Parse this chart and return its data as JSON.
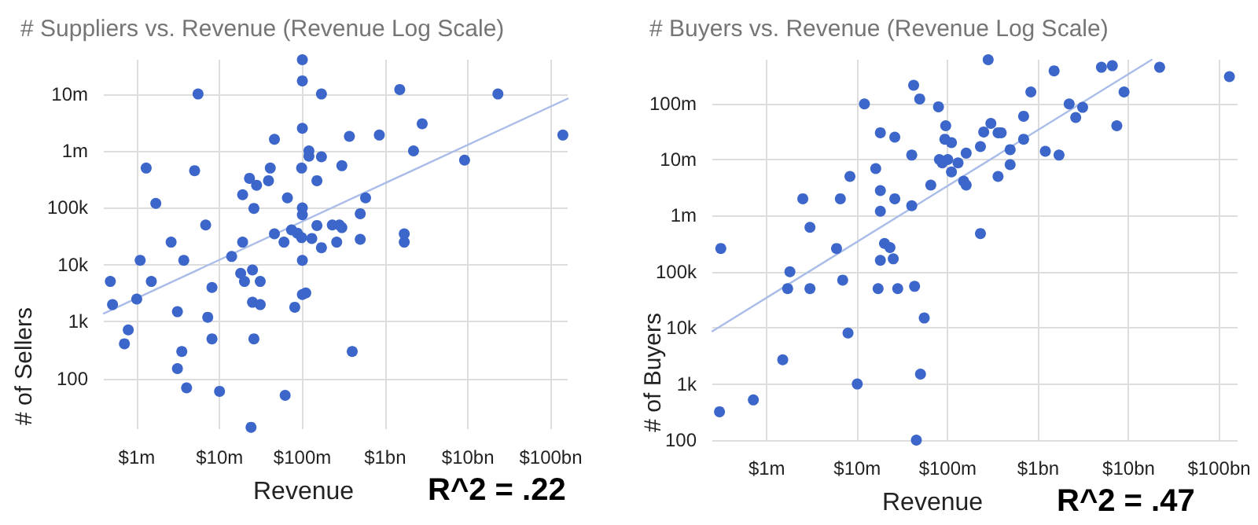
{
  "chart_data": [
    {
      "type": "scatter",
      "title": "# Suppliers vs. Revenue (Revenue Log Scale)",
      "xlabel": "Revenue",
      "ylabel": "# of Sellers",
      "annotations": [
        "R^2 = .22"
      ],
      "log": "xy",
      "grid": true,
      "xlim": [
        400000,
        160000000000
      ],
      "ylim": [
        13,
        40000000
      ],
      "xticks": [
        {
          "value": 1000000,
          "label": "$1m"
        },
        {
          "value": 10000000,
          "label": "$10m"
        },
        {
          "value": 100000000,
          "label": "$100m"
        },
        {
          "value": 1000000000,
          "label": "$1bn"
        },
        {
          "value": 10000000000,
          "label": "$10bn"
        },
        {
          "value": 100000000000,
          "label": "$100bn"
        }
      ],
      "yticks": [
        100,
        {
          "value": 1000,
          "label": "1k"
        },
        {
          "value": 10000,
          "label": "10k"
        },
        {
          "value": 100000,
          "label": "100k"
        },
        {
          "value": 1000000,
          "label": "1m"
        },
        {
          "value": 10000000,
          "label": "10m"
        }
      ],
      "series": [
        {
          "color": "#3c66c9",
          "x": [
            100000000.0,
            100000000.0,
            5500000.0,
            170000000.0,
            1500000000.0,
            23000000000.0,
            100000000.0,
            2800000000.0,
            46000000.0,
            370000000.0,
            850000000.0,
            140000000000.0,
            120000000.0,
            120000000.0,
            170000000.0,
            2200000000.0,
            9100000000.0,
            1300000.0,
            5000000.0,
            41000000.0,
            98000000.0,
            300000000.0,
            23000000.0,
            28000000.0,
            39000000.0,
            150000000.0,
            19000000.0,
            66000000.0,
            1700000.0,
            26000000.0,
            100000000.0,
            100000000.0,
            580000000.0,
            500000000.0,
            6800000.0,
            74000000.0,
            46000000.0,
            87000000.0,
            98000000.0,
            150000000.0,
            230000000.0,
            280000000.0,
            300000000.0,
            1700000000.0,
            1700000000.0,
            2600000.0,
            19000000.0,
            60000000.0,
            130000000.0,
            260000000.0,
            500000000.0,
            170000000.0,
            1100000.0,
            3700000.0,
            14000000.0,
            100000000.0,
            480000.0,
            510000.0,
            1000000.0,
            1500000.0,
            790000.0,
            710000.0,
            3100000.0,
            3500000.0,
            3100000.0,
            4000000.0,
            8100000.0,
            7200000.0,
            8100000.0,
            10000000.0,
            18000000.0,
            25000000.0,
            20000000.0,
            31000000.0,
            25000000.0,
            31000000.0,
            26000000.0,
            24000000.0,
            62000000.0,
            81000000.0,
            100000000.0,
            110000000.0,
            400000000.0
          ],
          "values": [
            40000000.0,
            17000000.0,
            10000000.0,
            10000000.0,
            12000000.0,
            10000000.0,
            2500000.0,
            3000000.0,
            1600000.0,
            1800000.0,
            1900000.0,
            1900000.0,
            1000000.0,
            810000.0,
            790000.0,
            1000000.0,
            690000.0,
            500000.0,
            450000.0,
            500000.0,
            500000.0,
            550000.0,
            330000.0,
            250000.0,
            300000.0,
            300000.0,
            170000.0,
            150000.0,
            120000.0,
            98000.0,
            100000.0,
            76000.0,
            150000.0,
            79000.0,
            50000.0,
            41000.0,
            35000.0,
            36000.0,
            30000.0,
            49000.0,
            50000.0,
            50000.0,
            45000.0,
            35000.0,
            25000.0,
            25000.0,
            25000.0,
            25000.0,
            29000.0,
            25000.0,
            28000.0,
            20000.0,
            12000.0,
            12000.0,
            14000.0,
            12000.0,
            5100,
            2000,
            2500,
            5100,
            720,
            410,
            1500,
            300,
            150,
            69,
            4000,
            1200,
            500,
            60,
            7100,
            8100,
            5100,
            5100,
            2200,
            2000,
            500,
            14,
            51,
            1800,
            3000,
            3200,
            300
          ]
        },
        {
          "type": "line",
          "color": "#a9bde8",
          "x": [
            400000,
            160000000000
          ],
          "values": [
            1400,
            8300000
          ]
        }
      ]
    },
    {
      "type": "scatter",
      "title": "# Buyers vs. Revenue (Revenue Log Scale)",
      "xlabel": "Revenue",
      "ylabel": "# of Buyers",
      "annotations": [
        "R^2 = .47"
      ],
      "log": "xy",
      "grid": true,
      "xlim": [
        250000,
        160000000000
      ],
      "ylim": [
        100,
        600000000
      ],
      "xticks": [
        {
          "value": 1000000,
          "label": "$1m"
        },
        {
          "value": 10000000,
          "label": "$10m"
        },
        {
          "value": 100000000,
          "label": "$100m"
        },
        {
          "value": 1000000000,
          "label": "$1bn"
        },
        {
          "value": 10000000000,
          "label": "$10bn"
        },
        {
          "value": 100000000000,
          "label": "$100bn"
        }
      ],
      "yticks": [
        100,
        {
          "value": 1000,
          "label": "1k"
        },
        {
          "value": 10000,
          "label": "10k"
        },
        {
          "value": 100000,
          "label": "100k"
        },
        {
          "value": 1000000,
          "label": "1m"
        },
        {
          "value": 10000000,
          "label": "10m"
        },
        {
          "value": 100000000,
          "label": "100m"
        }
      ],
      "series": [
        {
          "color": "#3c66c9",
          "x": [
            280000000.0,
            42000000.0,
            1500000000.0,
            5000000000.0,
            6600000000.0,
            22000000000.0,
            130000000000.0,
            49000000.0,
            12000000.0,
            79000000.0,
            830000000.0,
            8900000000.0,
            2200000000.0,
            3100000000.0,
            2600000000.0,
            7400000000.0,
            95000000.0,
            300000000.0,
            690000000.0,
            18000000.0,
            26000000.0,
            93000000.0,
            110000000.0,
            250000000.0,
            360000000.0,
            390000000.0,
            690000000.0,
            230000000.0,
            160000000.0,
            40000000.0,
            81000000.0,
            87000000.0,
            100000000.0,
            130000000.0,
            110000000.0,
            1200000000.0,
            1700000000.0,
            490000000.0,
            490000000.0,
            360000000.0,
            16000000.0,
            8300000.0,
            150000000.0,
            160000000.0,
            65000000.0,
            2500000.0,
            6500000.0,
            18000000.0,
            26000000.0,
            18000000.0,
            40000000.0,
            3000000.0,
            230000000.0,
            310000.0,
            5900000.0,
            20000000.0,
            23000000.0,
            18000000.0,
            25000000.0,
            1800000.0,
            1700000.0,
            3000000.0,
            6900000.0,
            17000000.0,
            28000000.0,
            43000000.0,
            55000000.0,
            7900000.0,
            1500000.0,
            10000000.0,
            50000000.0,
            300000.0,
            710000.0,
            45000000.0
          ],
          "values": [
            600000000.0,
            210000000.0,
            380000000.0,
            440000000.0,
            470000000.0,
            440000000.0,
            300000000.0,
            120000000.0,
            98000000.0,
            87000000.0,
            160000000.0,
            160000000.0,
            98000000.0,
            85000000.0,
            56000000.0,
            40000000.0,
            40000000.0,
            44000000.0,
            59000000.0,
            30000000.0,
            25000000.0,
            23000000.0,
            20000000.0,
            31000000.0,
            30000000.0,
            30000000.0,
            23000000.0,
            17000000.0,
            13000000.0,
            12000000.0,
            10000000.0,
            8700000.0,
            10000000.0,
            8700000.0,
            6000000.0,
            14000000.0,
            12000000.0,
            15000000.0,
            8100000.0,
            5000000.0,
            6900000.0,
            5000000.0,
            4100000.0,
            3500000.0,
            3500000.0,
            2000000.0,
            2000000.0,
            2800000.0,
            2000000.0,
            1200000.0,
            1500000.0,
            620000.0,
            480000.0,
            260000.0,
            260000.0,
            320000.0,
            270000.0,
            160000.0,
            170000.0,
            100000.0,
            50000.0,
            50000.0,
            71000.0,
            50000.0,
            50000.0,
            55000.0,
            15000.0,
            8100,
            2700,
            1000,
            1500,
            320,
            520,
            100
          ]
        },
        {
          "type": "line",
          "color": "#a9bde8",
          "x": [
            250000,
            18000000000
          ],
          "values": [
            8700,
            600000000
          ]
        }
      ]
    }
  ]
}
